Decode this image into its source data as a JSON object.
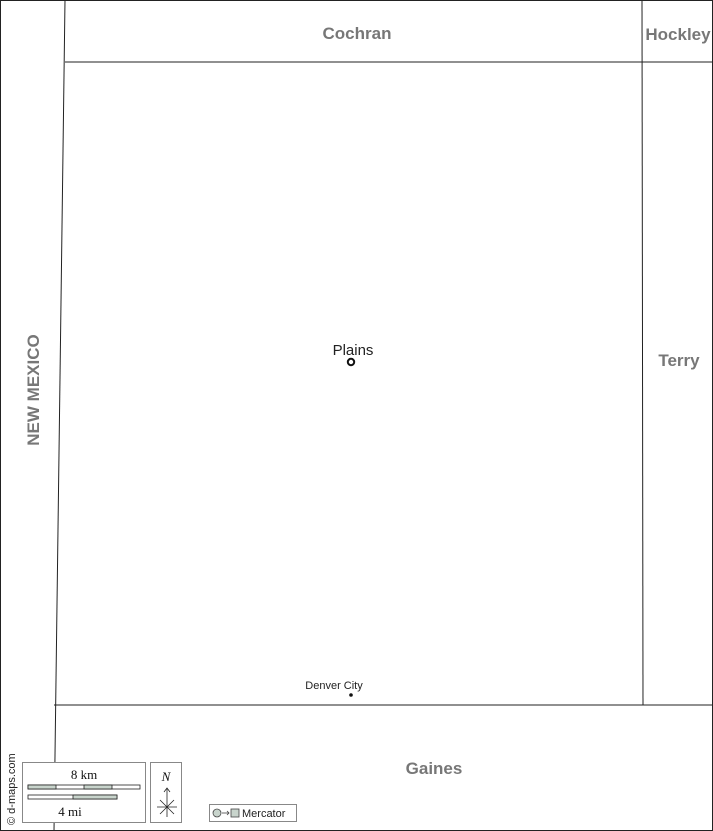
{
  "map": {
    "neighbors": {
      "north": "Cochran",
      "northeast": "Hockley",
      "east": "Terry",
      "south": "Gaines",
      "west": "NEW MEXICO"
    },
    "cities": [
      {
        "name": "Plains",
        "marker": "county-seat-ring"
      },
      {
        "name": "Denver City",
        "marker": "dot"
      }
    ],
    "scale": {
      "km_label": "8 km",
      "mi_label": "4 mi"
    },
    "compass": {
      "label": "N",
      "icon": "north-arrow-icon"
    },
    "projection": {
      "label": "Mercator",
      "icon": "circle-to-square-icon"
    },
    "credit": "© d-maps.com",
    "colors": {
      "border": "#222222",
      "label": "#777777",
      "scale_fill": "#c8d4cc"
    }
  }
}
